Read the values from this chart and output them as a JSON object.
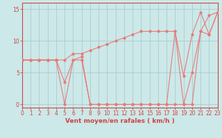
{
  "xlabel": "Vent moyen/en rafales ( km/h )",
  "bg_color": "#cce8e8",
  "line_color": "#e87878",
  "grid_color": "#aacccc",
  "axis_color": "#cc4444",
  "xlim": [
    0,
    23
  ],
  "ylim": [
    -0.5,
    16.0
  ],
  "yticks": [
    0,
    5,
    10,
    15
  ],
  "xticks": [
    0,
    1,
    2,
    3,
    4,
    5,
    6,
    7,
    8,
    9,
    10,
    11,
    12,
    13,
    14,
    15,
    16,
    17,
    18,
    19,
    20,
    21,
    22,
    23
  ],
  "line1_x": [
    0,
    1,
    2,
    3,
    4,
    5,
    6,
    7,
    8,
    9,
    10,
    11,
    12,
    13,
    14,
    15,
    16,
    17,
    18,
    19,
    20,
    21,
    22,
    23
  ],
  "line1_y": [
    7,
    7,
    7,
    7,
    7,
    7,
    8,
    8,
    8.5,
    9,
    9.5,
    10,
    10.5,
    11,
    11.5,
    11.5,
    11.5,
    11.5,
    11.5,
    4.5,
    11,
    14.5,
    11,
    14.5
  ],
  "line2_x": [
    0,
    1,
    2,
    3,
    4,
    5,
    6,
    7,
    8,
    9,
    10,
    11,
    12,
    13,
    14,
    15,
    16,
    17,
    18,
    19,
    20,
    21,
    22,
    23
  ],
  "line2_y": [
    7,
    7,
    7,
    7,
    7,
    0,
    7,
    7,
    0,
    0,
    0,
    0,
    0,
    0,
    0,
    0,
    0,
    0,
    0,
    0,
    0,
    11.5,
    14,
    14.5
  ],
  "line3_x": [
    0,
    1,
    2,
    3,
    4,
    5,
    6,
    7,
    8,
    9,
    10,
    11,
    12,
    13,
    14,
    15,
    16,
    17,
    18,
    19,
    20,
    21,
    22,
    23
  ],
  "line3_y": [
    7,
    7,
    7,
    7,
    7,
    3.5,
    7,
    7.5,
    0,
    0,
    0,
    0,
    0,
    0,
    0,
    0,
    0,
    0,
    11.5,
    0,
    5,
    11.5,
    11,
    14.5
  ],
  "marker_size": 2.0,
  "linewidth": 0.8,
  "tick_fontsize": 5.5,
  "xlabel_fontsize": 6.5
}
